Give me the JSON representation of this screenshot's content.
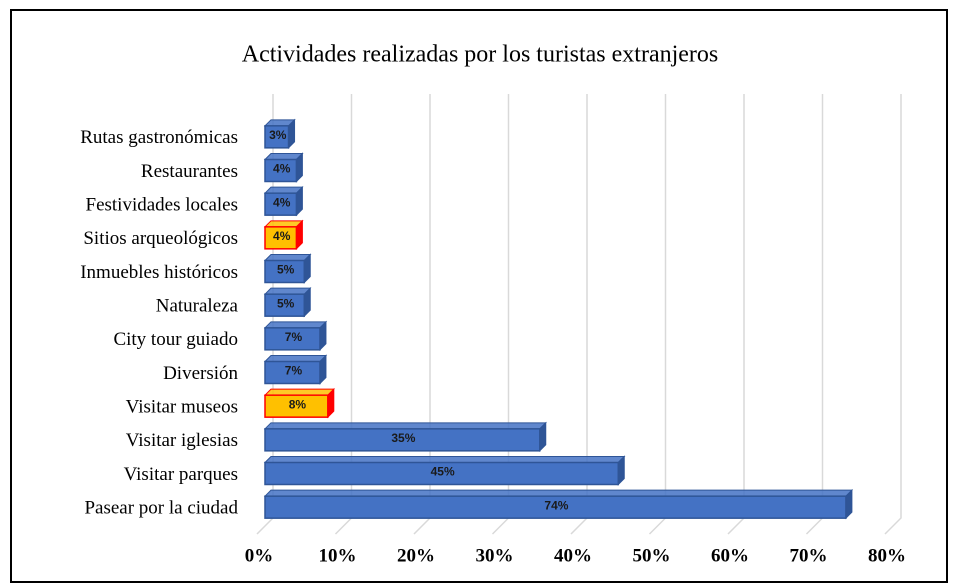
{
  "chart_data": {
    "type": "bar3d_horizontal",
    "title": "Actividades realizadas por los turistas extranjeros",
    "categories": [
      "Rutas gastronómicas",
      "Restaurantes",
      "Festividades locales",
      "Sitios arqueológicos",
      "Inmuebles históricos",
      "Naturaleza",
      "City tour guiado",
      "Diversión",
      "Visitar museos",
      "Visitar iglesias",
      "Visitar parques",
      "Pasear por la ciudad"
    ],
    "values": [
      3,
      4,
      4,
      4,
      5,
      5,
      7,
      7,
      8,
      35,
      45,
      74
    ],
    "value_labels": [
      "3%",
      "4%",
      "4%",
      "4%",
      "5%",
      "5%",
      "7%",
      "7%",
      "8%",
      "35%",
      "45%",
      "74%"
    ],
    "colors": [
      "#4472c4",
      "#4472c4",
      "#4472c4",
      "#ffc000",
      "#4472c4",
      "#4472c4",
      "#4472c4",
      "#4472c4",
      "#ffc000",
      "#4472c4",
      "#4472c4",
      "#4472c4"
    ],
    "edge_colors": [
      "#2f5597",
      "#2f5597",
      "#2f5597",
      "#ff0000",
      "#2f5597",
      "#2f5597",
      "#2f5597",
      "#2f5597",
      "#ff0000",
      "#2f5597",
      "#2f5597",
      "#2f5597"
    ],
    "xlim": [
      0,
      80
    ],
    "xticks": [
      {
        "value": 0,
        "label": "0%"
      },
      {
        "value": 10,
        "label": "10%"
      },
      {
        "value": 20,
        "label": "20%"
      },
      {
        "value": 30,
        "label": "30%"
      },
      {
        "value": 40,
        "label": "40%"
      },
      {
        "value": 50,
        "label": "50%"
      },
      {
        "value": 60,
        "label": "60%"
      },
      {
        "value": 70,
        "label": "70%"
      },
      {
        "value": 80,
        "label": "80%"
      }
    ],
    "grid": true
  }
}
